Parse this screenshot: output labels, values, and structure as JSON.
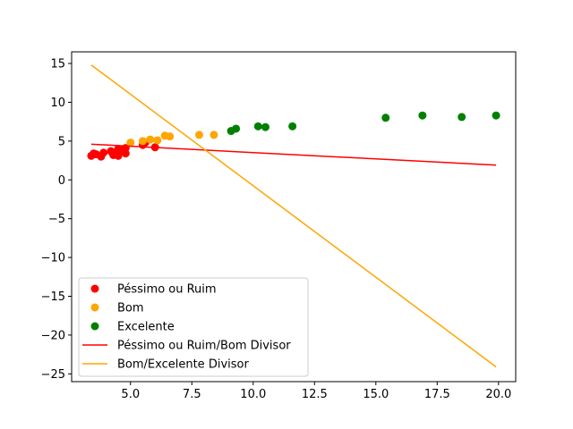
{
  "chart_data": {
    "type": "scatter",
    "title": "",
    "xlabel": "",
    "ylabel": "",
    "xlim": [
      2.6,
      20.7
    ],
    "ylim": [
      -26.0,
      16.5
    ],
    "grid": false,
    "legend_position": "lower-left",
    "x_ticks": [
      5.0,
      7.5,
      10.0,
      12.5,
      15.0,
      17.5,
      20.0
    ],
    "x_tick_labels": [
      "5.0",
      "7.5",
      "10.0",
      "12.5",
      "15.0",
      "17.5",
      "20.0"
    ],
    "y_ticks": [
      15,
      10,
      5,
      0,
      -5,
      -10,
      -15,
      -20,
      -25
    ],
    "y_tick_labels": [
      "15",
      "10",
      "5",
      "0",
      "−5",
      "−10",
      "−15",
      "−20",
      "−25"
    ],
    "scatter_series": [
      {
        "name": "Péssimo ou Ruim",
        "color": "#ff0000",
        "points": [
          [
            3.4,
            3.1
          ],
          [
            3.5,
            3.4
          ],
          [
            3.6,
            3.3
          ],
          [
            3.8,
            3.0
          ],
          [
            3.9,
            3.5
          ],
          [
            4.2,
            3.7
          ],
          [
            4.3,
            3.2
          ],
          [
            4.4,
            3.5
          ],
          [
            4.5,
            3.1
          ],
          [
            4.5,
            4.0
          ],
          [
            4.6,
            3.6
          ],
          [
            4.7,
            3.9
          ],
          [
            4.8,
            3.4
          ],
          [
            4.8,
            4.1
          ],
          [
            5.5,
            4.5
          ],
          [
            5.6,
            4.8
          ],
          [
            6.0,
            4.2
          ]
        ]
      },
      {
        "name": "Bom",
        "color": "#ffa500",
        "points": [
          [
            5.0,
            4.8
          ],
          [
            5.5,
            5.0
          ],
          [
            5.8,
            5.2
          ],
          [
            6.1,
            5.1
          ],
          [
            6.4,
            5.7
          ],
          [
            6.6,
            5.6
          ],
          [
            7.8,
            5.8
          ],
          [
            8.4,
            5.8
          ]
        ]
      },
      {
        "name": "Excelente",
        "color": "#008000",
        "points": [
          [
            9.1,
            6.3
          ],
          [
            9.3,
            6.6
          ],
          [
            10.2,
            6.9
          ],
          [
            10.5,
            6.8
          ],
          [
            11.6,
            6.9
          ],
          [
            15.4,
            8.0
          ],
          [
            16.9,
            8.3
          ],
          [
            18.5,
            8.1
          ],
          [
            19.9,
            8.3
          ]
        ]
      }
    ],
    "line_series": [
      {
        "name": "Péssimo ou Ruim/Bom Divisor",
        "color": "#ff0000",
        "x": [
          3.4,
          19.9
        ],
        "y": [
          4.6,
          1.9
        ]
      },
      {
        "name": "Bom/Excelente Divisor",
        "color": "#ffa500",
        "x": [
          3.4,
          19.9
        ],
        "y": [
          14.8,
          -24.1
        ]
      }
    ],
    "legend": [
      {
        "label": "Péssimo ou Ruim",
        "kind": "marker",
        "color": "#ff0000"
      },
      {
        "label": "Bom",
        "kind": "marker",
        "color": "#ffa500"
      },
      {
        "label": "Excelente",
        "kind": "marker",
        "color": "#008000"
      },
      {
        "label": "Péssimo ou Ruim/Bom Divisor",
        "kind": "line",
        "color": "#ff0000"
      },
      {
        "label": "Bom/Excelente Divisor",
        "kind": "line",
        "color": "#ffa500"
      }
    ]
  }
}
